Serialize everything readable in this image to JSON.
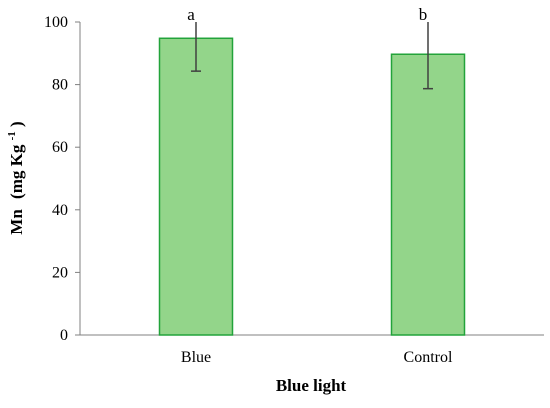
{
  "chart_data": {
    "type": "bar",
    "categories": [
      "Blue",
      "Control"
    ],
    "values": [
      94.8,
      89.7
    ],
    "error": [
      10.5,
      11.0
    ],
    "significance": [
      "a",
      "b"
    ],
    "xlabel": "Blue light",
    "ylabel": {
      "main": "Mn",
      "unit": "(mg Kg",
      "sup": "-1",
      "close": ")"
    },
    "ylim": [
      0,
      100
    ],
    "yticks": [
      0,
      20,
      40,
      60,
      80,
      100
    ],
    "grid": false,
    "legend": "none",
    "colors": {
      "bar_fill": "#93d58a",
      "bar_stroke": "#22a33a",
      "error_bar": "#404040",
      "axis": "#808080"
    }
  }
}
